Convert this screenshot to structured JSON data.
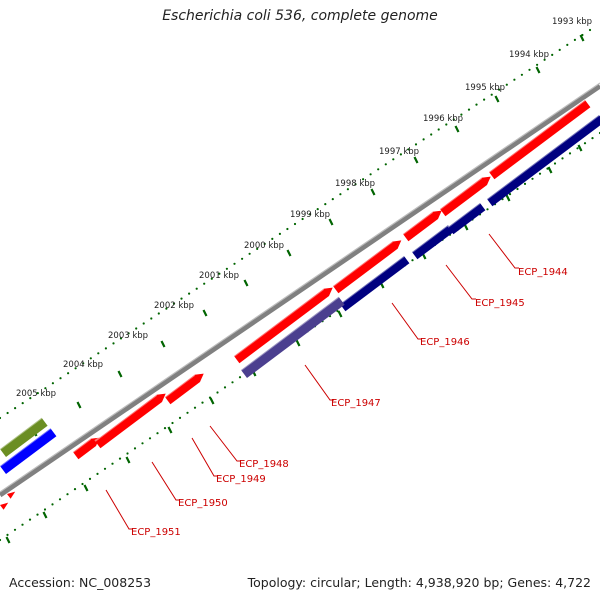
{
  "title": "Escherichia coli 536, complete genome",
  "accession_label": "Accession: NC_008253",
  "summary_label": "Topology: circular; Length: 4,938,920 bp; Genes: 4,722",
  "colors": {
    "forward_gene": "#ff0000",
    "reverse_gene": "#000080",
    "highlight_gene": "#4b3f8f",
    "blue_gene": "#0000ff",
    "olive_gene": "#6b8e23",
    "backbone": "#808080",
    "tick": "#006400",
    "label": "#cc0000"
  },
  "kbp_ticks": [
    "1993 kbp",
    "1994 kbp",
    "1995 kbp",
    "1996 kbp",
    "1997 kbp",
    "1998 kbp",
    "1999 kbp",
    "2000 kbp",
    "2001 kbp",
    "2002 kbp",
    "2003 kbp",
    "2004 kbp",
    "2005 kbp"
  ],
  "gene_labels": [
    "ECP_1944",
    "ECP_1945",
    "ECP_1946",
    "ECP_1947",
    "ECP_1948",
    "ECP_1949",
    "ECP_1950",
    "ECP_1951"
  ]
}
